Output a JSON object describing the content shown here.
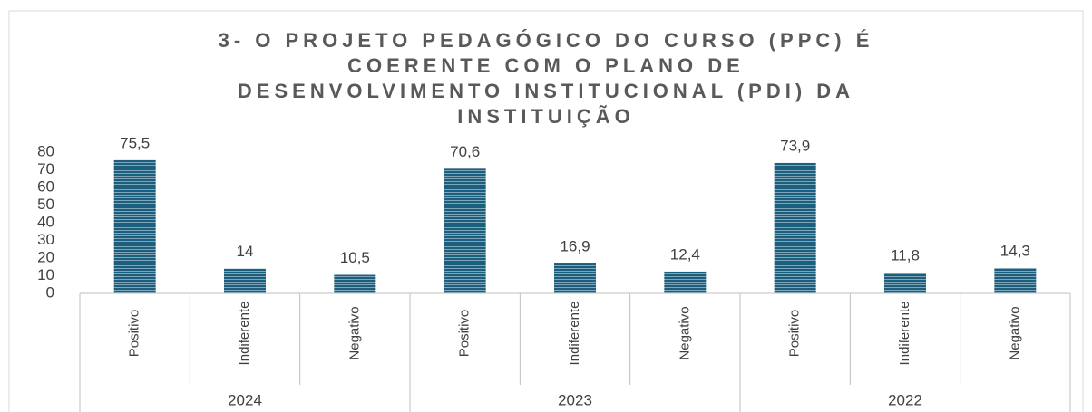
{
  "chart_data": {
    "type": "bar",
    "title": [
      "3- O PROJETO PEDAGÓGICO DO CURSO (PPC) É",
      "COERENTE COM O PLANO DE",
      "DESENVOLVIMENTO INSTITUCIONAL (PDI) DA",
      "INSTITUIÇÃO"
    ],
    "categories": [
      "Positivo",
      "Indiferente",
      "Negativo",
      "Positivo",
      "Indiferente",
      "Negativo",
      "Positivo",
      "Indiferente",
      "Negativo"
    ],
    "groups": [
      "2024",
      "2023",
      "2022"
    ],
    "values": [
      75.5,
      14,
      10.5,
      70.6,
      16.9,
      12.4,
      73.9,
      11.8,
      14.3
    ],
    "value_labels": [
      "75,5",
      "14",
      "10,5",
      "70,6",
      "16,9",
      "12,4",
      "73,9",
      "11,8",
      "14,3"
    ],
    "color": "#1b5e7e",
    "ylim": [
      0,
      80
    ],
    "yticks": [
      0,
      10,
      20,
      30,
      40,
      50,
      60,
      70,
      80
    ],
    "grid": false
  }
}
